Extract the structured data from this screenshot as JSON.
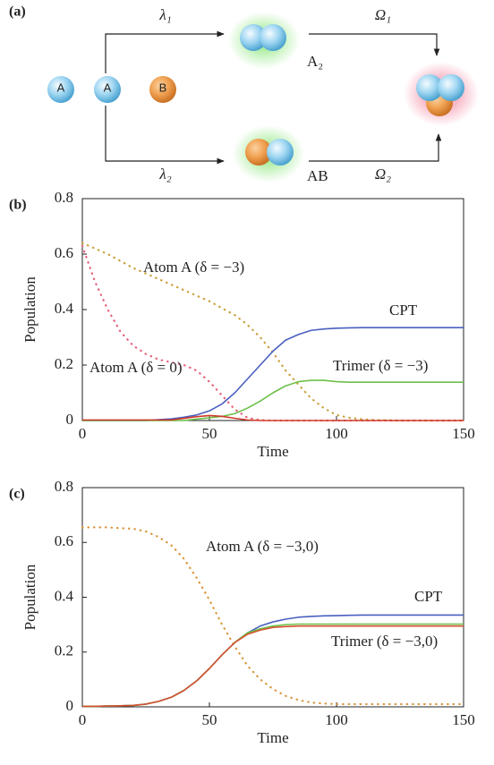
{
  "diagram": {
    "panel_label": "(a)",
    "atoms": [
      "A",
      "A",
      "B"
    ],
    "rate_top": "λ₁",
    "rate_bottom": "λ₂",
    "dimer_top": "A₂",
    "dimer_bottom": "AB",
    "coupling_top": "Ω₁",
    "coupling_bottom": "Ω₂"
  },
  "chart_data": [
    {
      "type": "line",
      "panel_label": "(b)",
      "x_label": "Time",
      "y_label": "Population",
      "x": [
        0,
        5,
        10,
        15,
        20,
        25,
        30,
        35,
        40,
        45,
        50,
        55,
        60,
        65,
        70,
        75,
        80,
        85,
        90,
        95,
        100,
        105,
        110,
        115,
        120,
        125,
        130,
        135,
        140,
        145,
        150
      ],
      "xlim": [
        0,
        150
      ],
      "xticks": [
        0,
        50,
        100,
        150
      ],
      "ylim": [
        0,
        0.8
      ],
      "yticks": [
        0,
        0.2,
        0.4,
        0.6,
        0.8
      ],
      "series": [
        {
          "name": "Atom A (δ = −3)",
          "color": "#c9a13e",
          "dotted": true,
          "values": [
            0.64,
            0.62,
            0.6,
            0.575,
            0.55,
            0.53,
            0.51,
            0.49,
            0.47,
            0.45,
            0.43,
            0.405,
            0.38,
            0.345,
            0.3,
            0.245,
            0.18,
            0.13,
            0.08,
            0.045,
            0.02,
            0.01,
            0.005,
            0.002,
            0.001,
            0,
            0,
            0,
            0,
            0,
            0
          ]
        },
        {
          "name": "Atom A (δ = 0)",
          "color": "#e8607a",
          "dotted": true,
          "values": [
            0.63,
            0.5,
            0.4,
            0.32,
            0.27,
            0.24,
            0.22,
            0.21,
            0.2,
            0.18,
            0.14,
            0.09,
            0.04,
            0.01,
            0.002,
            0,
            0,
            0,
            0,
            0,
            0,
            0,
            0,
            0,
            0,
            0,
            0,
            0,
            0,
            0,
            0
          ]
        },
        {
          "name": "CPT",
          "color": "#4a5fc0",
          "dotted": false,
          "values": [
            0,
            0,
            0,
            0,
            0,
            0,
            0.003,
            0.006,
            0.012,
            0.02,
            0.035,
            0.06,
            0.1,
            0.15,
            0.2,
            0.25,
            0.29,
            0.31,
            0.325,
            0.33,
            0.333,
            0.334,
            0.335,
            0.335,
            0.335,
            0.335,
            0.335,
            0.335,
            0.335,
            0.335,
            0.335
          ]
        },
        {
          "name": "Trimer (δ = −3)",
          "color": "#6cc04a",
          "dotted": false,
          "values": [
            0,
            0,
            0,
            0,
            0,
            0,
            0,
            0,
            0,
            0.005,
            0.01,
            0.015,
            0.025,
            0.045,
            0.07,
            0.1,
            0.125,
            0.14,
            0.145,
            0.145,
            0.14,
            0.138,
            0.138,
            0.138,
            0.138,
            0.138,
            0.138,
            0.138,
            0.138,
            0.138,
            0.138
          ]
        },
        {
          "color": "#d03a2a",
          "dotted": false,
          "values": [
            0.002,
            0.002,
            0.002,
            0.002,
            0.002,
            0.002,
            0.002,
            0.002,
            0.008,
            0.014,
            0.018,
            0.015,
            0.008,
            0.002,
            0,
            0,
            0,
            0,
            0,
            0,
            0,
            0,
            0,
            0,
            0,
            0,
            0,
            0,
            0,
            0,
            0
          ]
        }
      ]
    },
    {
      "type": "line",
      "panel_label": "(c)",
      "x_label": "Time",
      "y_label": "Population",
      "x": [
        0,
        5,
        10,
        15,
        20,
        25,
        30,
        35,
        40,
        45,
        50,
        55,
        60,
        65,
        70,
        75,
        80,
        85,
        90,
        95,
        100,
        105,
        110,
        115,
        120,
        125,
        130,
        135,
        140,
        145,
        150
      ],
      "xlim": [
        0,
        150
      ],
      "xticks": [
        0,
        50,
        100,
        150
      ],
      "ylim": [
        0,
        0.8
      ],
      "yticks": [
        0,
        0.2,
        0.4,
        0.6,
        0.8
      ],
      "series": [
        {
          "name": "Atom A (δ = −3,0)",
          "color": "#d9963e",
          "dotted": true,
          "values": [
            0.655,
            0.655,
            0.655,
            0.652,
            0.65,
            0.64,
            0.62,
            0.59,
            0.54,
            0.47,
            0.39,
            0.3,
            0.22,
            0.15,
            0.1,
            0.065,
            0.04,
            0.025,
            0.016,
            0.012,
            0.01,
            0.01,
            0.01,
            0.01,
            0.01,
            0.01,
            0.01,
            0.01,
            0.01,
            0.01,
            0.01
          ]
        },
        {
          "name": "CPT",
          "color": "#4a5fc0",
          "dotted": false,
          "values": [
            0.002,
            0.002,
            0.003,
            0.004,
            0.005,
            0.01,
            0.02,
            0.035,
            0.06,
            0.095,
            0.14,
            0.19,
            0.235,
            0.27,
            0.295,
            0.31,
            0.32,
            0.327,
            0.33,
            0.332,
            0.333,
            0.334,
            0.335,
            0.335,
            0.335,
            0.335,
            0.335,
            0.335,
            0.335,
            0.335,
            0.335
          ]
        },
        {
          "name": "Trimer (δ = −3,0)",
          "color": "#6cc04a",
          "dotted": false,
          "values": [
            0.002,
            0.002,
            0.003,
            0.004,
            0.005,
            0.01,
            0.02,
            0.035,
            0.06,
            0.095,
            0.14,
            0.19,
            0.235,
            0.27,
            0.285,
            0.295,
            0.3,
            0.302,
            0.302,
            0.302,
            0.302,
            0.302,
            0.302,
            0.302,
            0.302,
            0.302,
            0.302,
            0.302,
            0.302,
            0.302,
            0.302
          ]
        },
        {
          "color": "#d5502e",
          "dotted": false,
          "values": [
            0.002,
            0.002,
            0.003,
            0.004,
            0.005,
            0.01,
            0.02,
            0.035,
            0.06,
            0.095,
            0.14,
            0.19,
            0.235,
            0.265,
            0.28,
            0.29,
            0.293,
            0.295,
            0.295,
            0.295,
            0.295,
            0.295,
            0.295,
            0.295,
            0.295,
            0.295,
            0.295,
            0.295,
            0.295,
            0.295,
            0.295
          ]
        }
      ]
    }
  ]
}
